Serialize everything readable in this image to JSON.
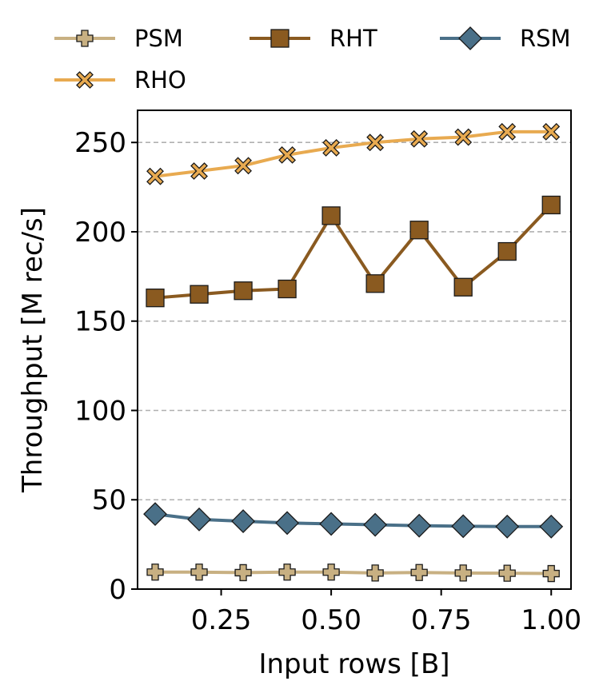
{
  "chart_data": {
    "type": "line",
    "xlabel": "Input rows [B]",
    "ylabel": "Throughput [M rec/s]",
    "xlim": [
      0.06,
      1.045
    ],
    "ylim": [
      0,
      268
    ],
    "xticks": [
      0.25,
      0.5,
      0.75,
      1.0
    ],
    "xtick_labels": [
      "0.25",
      "0.50",
      "0.75",
      "1.00"
    ],
    "yticks": [
      0,
      50,
      100,
      150,
      200,
      250
    ],
    "ytick_labels": [
      "0",
      "50",
      "100",
      "150",
      "200",
      "250"
    ],
    "grid": "horizontal-dashed",
    "legend_position": "top",
    "x": [
      0.1,
      0.2,
      0.3,
      0.4,
      0.5,
      0.6,
      0.7,
      0.8,
      0.9,
      1.0
    ],
    "series": [
      {
        "name": "PSM",
        "color": "#c8b082",
        "marker": "plus",
        "values": [
          9.5,
          9.5,
          9.2,
          9.5,
          9.5,
          9.0,
          9.3,
          9.0,
          8.9,
          8.7
        ]
      },
      {
        "name": "RHT",
        "color": "#8a5a20",
        "marker": "square",
        "values": [
          163,
          165,
          167,
          168,
          209,
          171,
          201,
          169,
          189,
          215
        ]
      },
      {
        "name": "RSM",
        "color": "#4a7088",
        "marker": "diamond",
        "values": [
          42,
          39,
          38,
          37,
          36.5,
          36,
          35.5,
          35.2,
          35,
          35
        ]
      },
      {
        "name": "RHO",
        "color": "#e8aa50",
        "marker": "x",
        "values": [
          231,
          234,
          237,
          243,
          247,
          250,
          252,
          253,
          256,
          256
        ]
      }
    ]
  }
}
